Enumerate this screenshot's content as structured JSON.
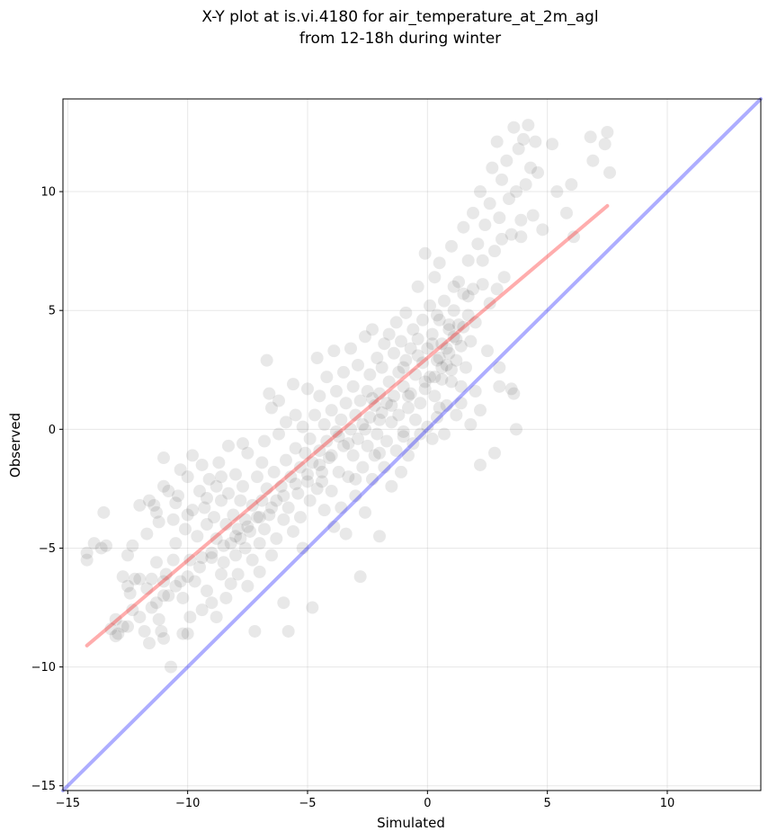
{
  "chart_data": {
    "type": "scatter",
    "title_lines": [
      "X-Y plot at is.vi.4180 for air_temperature_at_2m_agl",
      "from 12-18h during winter"
    ],
    "xlabel": "Simulated",
    "ylabel": "Observed",
    "xlim": [
      -15.2,
      13.9
    ],
    "ylim": [
      -15.2,
      13.9
    ],
    "xticks": [
      -15,
      -10,
      -5,
      0,
      5,
      10
    ],
    "yticks": [
      -15,
      -10,
      -5,
      0,
      5,
      10
    ],
    "xtick_labels": [
      "−15",
      "−10",
      "−5",
      "0",
      "5",
      "10"
    ],
    "ytick_labels": [
      "−15",
      "−10",
      "−5",
      "0",
      "5",
      "10"
    ],
    "grid": true,
    "points_color": "#000000",
    "points_alpha": 0.09,
    "regression_line": {
      "x": [
        -14.2,
        7.5
      ],
      "y": [
        -9.1,
        9.4
      ],
      "color": "#ff0000",
      "alpha": 0.32
    },
    "identity_line": {
      "x": [
        -15.2,
        13.9
      ],
      "y": [
        -15.2,
        13.9
      ],
      "color": "#0000ff",
      "alpha": 0.32
    },
    "points": [
      [
        -14.2,
        -5.2
      ],
      [
        -14.2,
        -5.5
      ],
      [
        -13.9,
        -4.8
      ],
      [
        -13.5,
        -3.5
      ],
      [
        -13.6,
        -5.0
      ],
      [
        -13.4,
        -4.9
      ],
      [
        -13.2,
        -8.4
      ],
      [
        -13.0,
        -8.0
      ],
      [
        -12.9,
        -8.6
      ],
      [
        -12.7,
        -8.3
      ],
      [
        -12.7,
        -6.2
      ],
      [
        -12.5,
        -6.6
      ],
      [
        -12.5,
        -5.3
      ],
      [
        -12.4,
        -6.9
      ],
      [
        -12.3,
        -7.6
      ],
      [
        -12.3,
        -4.9
      ],
      [
        -12.2,
        -6.3
      ],
      [
        -12.0,
        -6.3
      ],
      [
        -12.0,
        -3.2
      ],
      [
        -11.8,
        -8.5
      ],
      [
        -11.7,
        -4.4
      ],
      [
        -11.7,
        -6.7
      ],
      [
        -11.6,
        -9.0
      ],
      [
        -11.6,
        -3.0
      ],
      [
        -11.5,
        -6.3
      ],
      [
        -11.4,
        -3.2
      ],
      [
        -11.3,
        -5.6
      ],
      [
        -11.3,
        -7.3
      ],
      [
        -11.2,
        -8.0
      ],
      [
        -11.2,
        -3.9
      ],
      [
        -11.1,
        -8.5
      ],
      [
        -11.0,
        -8.8
      ],
      [
        -11.0,
        -2.4
      ],
      [
        -11.0,
        -6.4
      ],
      [
        -11.0,
        -1.2
      ],
      [
        -10.9,
        -6.1
      ],
      [
        -10.8,
        -2.6
      ],
      [
        -10.8,
        -7.0
      ],
      [
        -10.7,
        -10.0
      ],
      [
        -10.6,
        -3.8
      ],
      [
        -10.6,
        -5.5
      ],
      [
        -10.5,
        -3.1
      ],
      [
        -10.5,
        -4.8
      ],
      [
        -10.4,
        -2.8
      ],
      [
        -10.3,
        -6.4
      ],
      [
        -10.2,
        -8.6
      ],
      [
        -10.2,
        -7.1
      ],
      [
        -10.1,
        -4.2
      ],
      [
        -10.0,
        -8.6
      ],
      [
        -10.0,
        -2.0
      ],
      [
        -10.0,
        -3.6
      ],
      [
        -9.9,
        -5.5
      ],
      [
        -9.9,
        -7.9
      ],
      [
        -9.8,
        -1.1
      ],
      [
        -9.8,
        -3.4
      ],
      [
        -9.7,
        -6.4
      ],
      [
        -9.6,
        -4.5
      ],
      [
        -9.5,
        -2.6
      ],
      [
        -9.4,
        -1.5
      ],
      [
        -9.4,
        -7.6
      ],
      [
        -9.4,
        -5.4
      ],
      [
        -9.3,
        -3.3
      ],
      [
        -9.2,
        -6.8
      ],
      [
        -9.2,
        -4.0
      ],
      [
        -9.1,
        -2.1
      ],
      [
        -9.0,
        -7.3
      ],
      [
        -9.0,
        -5.2
      ],
      [
        -8.9,
        -3.7
      ],
      [
        -8.8,
        -4.6
      ],
      [
        -8.8,
        -2.4
      ],
      [
        -8.8,
        -7.9
      ],
      [
        -8.7,
        -1.4
      ],
      [
        -8.6,
        -6.1
      ],
      [
        -8.6,
        -3.0
      ],
      [
        -8.5,
        -5.6
      ],
      [
        -8.4,
        -4.0
      ],
      [
        -8.4,
        -7.1
      ],
      [
        -8.3,
        -0.7
      ],
      [
        -8.3,
        -2.7
      ],
      [
        -8.2,
        -4.8
      ],
      [
        -8.2,
        -6.5
      ],
      [
        -8.1,
        -3.6
      ],
      [
        -8.0,
        -5.3
      ],
      [
        -8.0,
        -1.9
      ],
      [
        -7.9,
        -4.2
      ],
      [
        -7.9,
        -6.1
      ],
      [
        -7.8,
        -3.0
      ],
      [
        -7.8,
        -4.6
      ],
      [
        -7.7,
        -2.4
      ],
      [
        -7.6,
        -5.0
      ],
      [
        -7.6,
        -3.8
      ],
      [
        -7.5,
        -6.6
      ],
      [
        -7.5,
        -1.0
      ],
      [
        -7.4,
        -4.3
      ],
      [
        -7.3,
        -3.2
      ],
      [
        -7.3,
        -5.5
      ],
      [
        -7.2,
        -8.5
      ],
      [
        -7.1,
        -3.7
      ],
      [
        -7.1,
        -2.0
      ],
      [
        -7.0,
        -4.8
      ],
      [
        -7.0,
        -6.0
      ],
      [
        -6.9,
        -3.0
      ],
      [
        -6.8,
        -0.5
      ],
      [
        -6.8,
        -4.2
      ],
      [
        -6.7,
        2.9
      ],
      [
        -6.7,
        -2.5
      ],
      [
        -6.6,
        -3.6
      ],
      [
        -6.6,
        1.5
      ],
      [
        -6.5,
        -5.3
      ],
      [
        -6.5,
        0.9
      ],
      [
        -6.4,
        -1.8
      ],
      [
        -6.3,
        -3.0
      ],
      [
        -6.3,
        -4.6
      ],
      [
        -6.2,
        -0.2
      ],
      [
        -6.2,
        1.2
      ],
      [
        -6.1,
        -2.4
      ],
      [
        -6.0,
        -3.8
      ],
      [
        -6.0,
        -7.3
      ],
      [
        -5.9,
        -1.3
      ],
      [
        -5.9,
        0.3
      ],
      [
        -5.8,
        -8.5
      ],
      [
        -5.8,
        -3.3
      ],
      [
        -5.7,
        -2.0
      ],
      [
        -5.6,
        1.9
      ],
      [
        -5.6,
        -4.3
      ],
      [
        -5.5,
        0.6
      ],
      [
        -5.5,
        -0.8
      ],
      [
        -5.4,
        -2.7
      ],
      [
        -5.3,
        -1.6
      ],
      [
        -5.3,
        -3.7
      ],
      [
        -5.2,
        -5.0
      ],
      [
        -5.2,
        0.1
      ],
      [
        -5.1,
        -1.0
      ],
      [
        -5.0,
        1.7
      ],
      [
        -5.0,
        -2.2
      ],
      [
        -4.9,
        -0.4
      ],
      [
        -4.9,
        -3.0
      ],
      [
        -4.8,
        -7.5
      ],
      [
        -4.8,
        -1.4
      ],
      [
        -4.7,
        0.6
      ],
      [
        -4.6,
        3.0
      ],
      [
        -4.6,
        -2.5
      ],
      [
        -4.5,
        -0.9
      ],
      [
        -4.5,
        1.4
      ],
      [
        -4.4,
        -1.8
      ],
      [
        -4.3,
        -3.4
      ],
      [
        -4.3,
        0.2
      ],
      [
        -4.2,
        -0.5
      ],
      [
        -4.2,
        2.2
      ],
      [
        -4.1,
        -1.2
      ],
      [
        -4.0,
        -2.6
      ],
      [
        -4.0,
        0.8
      ],
      [
        -3.9,
        -4.1
      ],
      [
        -3.9,
        3.3
      ],
      [
        -3.8,
        -0.1
      ],
      [
        -3.8,
        1.6
      ],
      [
        -3.7,
        -1.8
      ],
      [
        -3.6,
        0.4
      ],
      [
        -3.6,
        -3.3
      ],
      [
        -3.5,
        2.4
      ],
      [
        -3.5,
        -0.7
      ],
      [
        -3.4,
        1.1
      ],
      [
        -3.4,
        -4.4
      ],
      [
        -3.3,
        -2.0
      ],
      [
        -3.2,
        0.0
      ],
      [
        -3.2,
        3.4
      ],
      [
        -3.1,
        -1.1
      ],
      [
        -3.1,
        1.8
      ],
      [
        -3.0,
        -2.8
      ],
      [
        -3.0,
        0.6
      ],
      [
        -2.9,
        -0.4
      ],
      [
        -2.9,
        2.7
      ],
      [
        -2.8,
        -6.2
      ],
      [
        -2.8,
        1.2
      ],
      [
        -2.7,
        -1.6
      ],
      [
        -2.7,
        0.2
      ],
      [
        -2.6,
        3.9
      ],
      [
        -2.6,
        -3.5
      ],
      [
        -2.5,
        1.6
      ],
      [
        -2.5,
        -0.7
      ],
      [
        -2.4,
        2.3
      ],
      [
        -2.4,
        0.5
      ],
      [
        -2.3,
        -2.1
      ],
      [
        -2.3,
        4.2
      ],
      [
        -2.2,
        1.0
      ],
      [
        -2.2,
        -1.1
      ],
      [
        -2.1,
        3.0
      ],
      [
        -2.1,
        -0.2
      ],
      [
        -2.0,
        1.5
      ],
      [
        -2.0,
        -4.5
      ],
      [
        -1.9,
        2.6
      ],
      [
        -1.9,
        0.7
      ],
      [
        -1.8,
        -1.6
      ],
      [
        -1.8,
        3.6
      ],
      [
        -1.7,
        1.1
      ],
      [
        -1.7,
        -0.5
      ],
      [
        -1.6,
        4.0
      ],
      [
        -1.6,
        2.0
      ],
      [
        -1.5,
        0.3
      ],
      [
        -1.5,
        -2.4
      ],
      [
        -1.4,
        3.2
      ],
      [
        -1.4,
        1.4
      ],
      [
        -1.3,
        -0.9
      ],
      [
        -1.3,
        4.5
      ],
      [
        -1.2,
        2.4
      ],
      [
        -1.2,
        0.6
      ],
      [
        -1.1,
        -1.8
      ],
      [
        -1.1,
        3.7
      ],
      [
        -1.0,
        1.8
      ],
      [
        -1.0,
        -0.3
      ],
      [
        -0.9,
        4.9
      ],
      [
        -0.9,
        2.9
      ],
      [
        -0.8,
        0.9
      ],
      [
        -0.8,
        -1.1
      ],
      [
        -0.7,
        3.4
      ],
      [
        -0.7,
        1.5
      ],
      [
        -0.6,
        4.2
      ],
      [
        -0.6,
        -0.6
      ],
      [
        -0.5,
        2.3
      ],
      [
        -0.5,
        0.4
      ],
      [
        -0.4,
        3.8
      ],
      [
        -0.4,
        6.0
      ],
      [
        -0.3,
        1.1
      ],
      [
        -0.3,
        -0.2
      ],
      [
        -0.2,
        2.8
      ],
      [
        -0.2,
        4.6
      ],
      [
        -0.1,
        7.4
      ],
      [
        -0.1,
        1.7
      ],
      [
        0.0,
        0.1
      ],
      [
        0.0,
        3.4
      ],
      [
        0.1,
        5.2
      ],
      [
        0.1,
        2.2
      ],
      [
        0.2,
        -0.4
      ],
      [
        0.2,
        4.0
      ],
      [
        0.3,
        1.4
      ],
      [
        0.3,
        6.4
      ],
      [
        0.4,
        2.9
      ],
      [
        0.4,
        0.5
      ],
      [
        0.5,
        4.6
      ],
      [
        0.5,
        7.0
      ],
      [
        0.6,
        2.1
      ],
      [
        0.6,
        3.6
      ],
      [
        0.7,
        -0.2
      ],
      [
        0.7,
        5.4
      ],
      [
        0.8,
        2.7
      ],
      [
        0.8,
        1.0
      ],
      [
        0.9,
        4.2
      ],
      [
        0.9,
        3.2
      ],
      [
        1.0,
        7.7
      ],
      [
        1.0,
        2.0
      ],
      [
        1.1,
        5.0
      ],
      [
        1.1,
        3.9
      ],
      [
        1.2,
        0.6
      ],
      [
        1.2,
        2.9
      ],
      [
        1.3,
        6.2
      ],
      [
        1.3,
        4.4
      ],
      [
        1.4,
        1.8
      ],
      [
        1.4,
        3.5
      ],
      [
        1.5,
        8.5
      ],
      [
        1.5,
        5.7
      ],
      [
        1.6,
        2.6
      ],
      [
        1.7,
        4.8
      ],
      [
        1.7,
        7.1
      ],
      [
        1.8,
        0.2
      ],
      [
        1.8,
        3.7
      ],
      [
        1.9,
        9.1
      ],
      [
        1.9,
        5.9
      ],
      [
        2.0,
        1.6
      ],
      [
        2.0,
        4.5
      ],
      [
        2.1,
        7.8
      ],
      [
        2.2,
        10.0
      ],
      [
        2.2,
        -1.5
      ],
      [
        2.3,
        6.1
      ],
      [
        2.4,
        8.6
      ],
      [
        2.5,
        3.3
      ],
      [
        2.6,
        9.5
      ],
      [
        2.6,
        5.3
      ],
      [
        2.7,
        11.0
      ],
      [
        2.8,
        7.5
      ],
      [
        2.8,
        -1.0
      ],
      [
        2.9,
        12.1
      ],
      [
        3.0,
        8.9
      ],
      [
        3.0,
        2.6
      ],
      [
        3.1,
        10.5
      ],
      [
        3.2,
        6.4
      ],
      [
        3.3,
        11.3
      ],
      [
        3.4,
        9.7
      ],
      [
        3.5,
        1.7
      ],
      [
        3.5,
        8.2
      ],
      [
        3.6,
        12.7
      ],
      [
        3.7,
        10.0
      ],
      [
        3.7,
        0.0
      ],
      [
        3.8,
        11.8
      ],
      [
        3.9,
        8.8
      ],
      [
        4.0,
        12.2
      ],
      [
        4.1,
        10.3
      ],
      [
        4.2,
        12.8
      ],
      [
        4.3,
        11.0
      ],
      [
        4.5,
        12.1
      ],
      [
        4.6,
        10.8
      ],
      [
        4.8,
        8.4
      ],
      [
        5.2,
        12.0
      ],
      [
        5.4,
        10.0
      ],
      [
        5.8,
        9.1
      ],
      [
        6.0,
        10.3
      ],
      [
        6.1,
        8.1
      ],
      [
        6.8,
        12.3
      ],
      [
        6.9,
        11.3
      ],
      [
        7.4,
        12.0
      ],
      [
        7.5,
        12.5
      ],
      [
        7.6,
        10.8
      ],
      [
        0.5,
        3.0
      ],
      [
        0.8,
        3.4
      ],
      [
        1.0,
        2.5
      ],
      [
        0.3,
        2.2
      ],
      [
        1.2,
        3.8
      ],
      [
        0.6,
        2.6
      ],
      [
        -0.1,
        2.0
      ],
      [
        0.9,
        4.4
      ],
      [
        1.5,
        4.3
      ],
      [
        0.2,
        3.6
      ],
      [
        -0.8,
        1.4
      ],
      [
        -1.5,
        1.0
      ],
      [
        -2.0,
        0.4
      ],
      [
        -2.6,
        0.0
      ],
      [
        -3.3,
        -0.6
      ],
      [
        -4.0,
        -1.1
      ],
      [
        -4.5,
        -1.5
      ],
      [
        -5.0,
        -1.9
      ],
      [
        -5.5,
        -2.3
      ],
      [
        -6.0,
        -2.8
      ],
      [
        -6.5,
        -3.3
      ],
      [
        -7.0,
        -3.7
      ],
      [
        -7.5,
        -4.1
      ],
      [
        -8.0,
        -4.5
      ],
      [
        -8.5,
        -4.9
      ],
      [
        -9.0,
        -5.4
      ],
      [
        -9.5,
        -5.8
      ],
      [
        -10.0,
        -6.2
      ],
      [
        -10.5,
        -6.6
      ],
      [
        -11.0,
        -7.0
      ],
      [
        -11.5,
        -7.5
      ],
      [
        -12.0,
        -7.9
      ],
      [
        -12.5,
        -8.3
      ],
      [
        -13.0,
        -8.7
      ],
      [
        -4.4,
        -2.2
      ],
      [
        -3.7,
        -0.3
      ],
      [
        -2.3,
        1.3
      ],
      [
        -1.0,
        2.6
      ],
      [
        -0.4,
        3.1
      ],
      [
        0.4,
        4.8
      ],
      [
        1.1,
        6.0
      ],
      [
        1.7,
        5.6
      ],
      [
        2.3,
        7.1
      ],
      [
        3.1,
        8.0
      ],
      [
        3.9,
        8.1
      ],
      [
        4.4,
        9.0
      ],
      [
        2.9,
        5.9
      ],
      [
        -3.0,
        -2.1
      ],
      [
        -2.0,
        -1.0
      ],
      [
        -1.0,
        -0.1
      ],
      [
        0.5,
        0.9
      ],
      [
        1.4,
        1.1
      ],
      [
        2.2,
        0.8
      ],
      [
        3.0,
        1.8
      ],
      [
        3.6,
        1.5
      ],
      [
        -6.9,
        -1.4
      ],
      [
        -7.7,
        -0.6
      ],
      [
        -8.6,
        -2.0
      ],
      [
        -9.2,
        -2.9
      ],
      [
        -10.3,
        -1.7
      ],
      [
        -11.3,
        -3.5
      ]
    ]
  }
}
